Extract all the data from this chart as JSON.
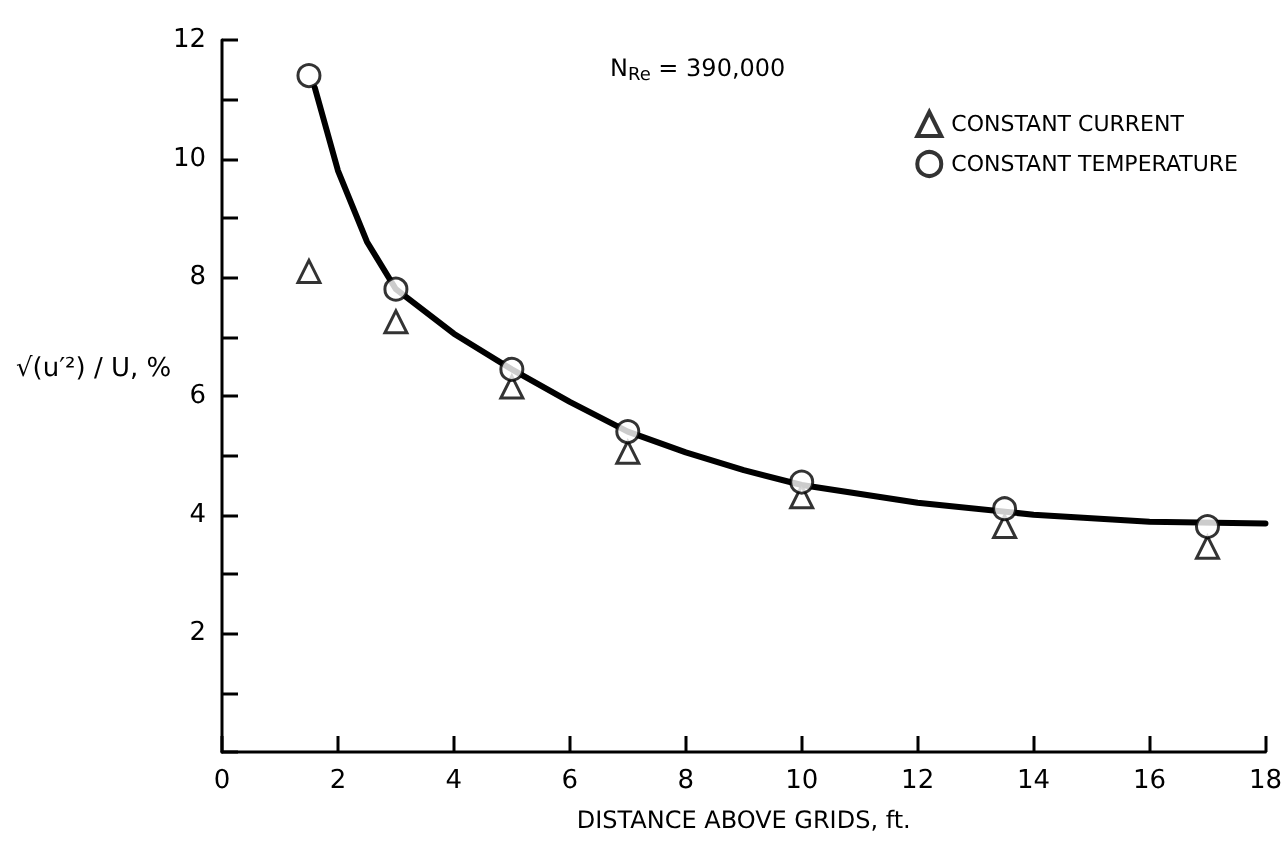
{
  "chart_data": {
    "type": "scatter",
    "xlabel": "DISTANCE ABOVE GRIDS, ft.",
    "ylabel": "√(u′²) / U, %",
    "annotations": [
      "N$_{Re}$ = 390,000"
    ],
    "xlim": [
      0,
      18
    ],
    "xticks": [
      0,
      2,
      4,
      6,
      8,
      10,
      12,
      14,
      16,
      18
    ],
    "ylim": [
      0,
      12
    ],
    "yticks": [
      {
        "value": 0,
        "label": null
      },
      {
        "value": 1,
        "label": null
      },
      2,
      {
        "value": 3,
        "label": null
      },
      4,
      {
        "value": 5,
        "label": null
      },
      6,
      {
        "value": 7,
        "label": null
      },
      8,
      {
        "value": 9,
        "label": null
      },
      10,
      {
        "value": 11,
        "label": null
      },
      12
    ],
    "grid": false,
    "legend": "top right",
    "series": [
      {
        "name": "CONSTANT CURRENT",
        "color": "#000000",
        "marker": "triangle",
        "x": [
          1.5,
          3,
          5,
          7,
          10,
          13.5,
          17
        ],
        "values": [
          8.1,
          7.25,
          6.15,
          5.05,
          4.3,
          3.8,
          3.45
        ]
      },
      {
        "name": "CONSTANT TEMPERATURE",
        "color": "#000000",
        "marker": "circle",
        "x": [
          1.5,
          3,
          5,
          7,
          10,
          13.5,
          17
        ],
        "values": [
          11.4,
          7.8,
          6.45,
          5.4,
          4.55,
          4.1,
          3.8
        ]
      },
      {
        "type": "line",
        "color": "#000000",
        "marker": "none",
        "x": [
          1.6,
          2,
          2.5,
          3,
          4,
          5,
          6,
          7,
          8,
          9,
          10,
          12,
          14,
          16,
          18
        ],
        "values": [
          11.2,
          9.8,
          8.6,
          7.8,
          7.05,
          6.45,
          5.9,
          5.4,
          5.05,
          4.75,
          4.5,
          4.2,
          4.0,
          3.88,
          3.85
        ]
      }
    ]
  }
}
